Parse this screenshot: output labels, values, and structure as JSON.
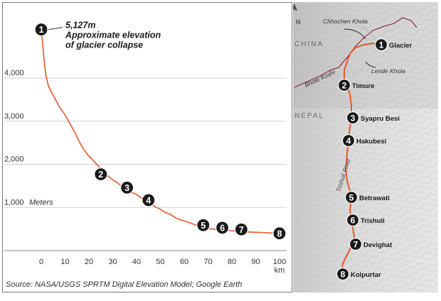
{
  "chart_data": {
    "type": "line",
    "title": "",
    "xlabel": "km",
    "ylabel": "Meters",
    "xlim": [
      -3,
      103
    ],
    "ylim": [
      0,
      5400
    ],
    "x_ticks": [
      0,
      10,
      20,
      30,
      40,
      50,
      60,
      70,
      80,
      90,
      100
    ],
    "y_ticks": [
      {
        "value": 1000,
        "label": "1,000"
      },
      {
        "value": 2000,
        "label": "2,000"
      },
      {
        "value": 3000,
        "label": "3,000"
      },
      {
        "value": 4000,
        "label": "4,000"
      }
    ],
    "y_unit_label": "Meters",
    "grid": "horizontal",
    "line_color": "#e8582a",
    "series": [
      {
        "x": [
          0,
          0.5,
          1,
          1.5,
          2,
          3,
          4,
          5,
          6,
          8,
          10,
          12,
          14,
          16,
          18,
          20,
          22,
          24,
          26,
          28,
          30,
          32,
          34,
          36,
          38,
          40,
          42,
          44,
          46,
          48,
          50,
          52,
          54,
          56,
          58,
          60,
          62,
          64,
          66,
          68,
          70,
          72,
          74,
          76,
          78,
          80,
          82,
          84,
          86,
          88,
          90,
          92,
          94,
          96,
          98,
          100
        ],
        "y": [
          5127,
          4850,
          4520,
          4250,
          4050,
          3820,
          3700,
          3600,
          3500,
          3300,
          3150,
          2950,
          2750,
          2520,
          2330,
          2190,
          2080,
          1960,
          1830,
          1730,
          1640,
          1570,
          1480,
          1420,
          1350,
          1300,
          1220,
          1160,
          1090,
          1010,
          960,
          880,
          850,
          770,
          720,
          690,
          650,
          610,
          570,
          530,
          510,
          500,
          490,
          480,
          475,
          460,
          450,
          440,
          435,
          430,
          425,
          420,
          415,
          410,
          405,
          400
        ]
      }
    ],
    "markers": [
      {
        "num": "1",
        "x": 0,
        "y": 5127
      },
      {
        "num": "2",
        "x": 25,
        "y": 1770
      },
      {
        "num": "3",
        "x": 36,
        "y": 1460
      },
      {
        "num": "4",
        "x": 45,
        "y": 1170
      },
      {
        "num": "5",
        "x": 68,
        "y": 590
      },
      {
        "num": "6",
        "x": 76,
        "y": 530
      },
      {
        "num": "7",
        "x": 84,
        "y": 490
      },
      {
        "num": "8",
        "x": 100,
        "y": 400
      }
    ],
    "annotation": {
      "value": "5,127m",
      "line1": "Approximate elevation",
      "line2": "of glacier collapse"
    }
  },
  "map": {
    "north_label": "N",
    "countries": [
      "CHINA",
      "NEPAL"
    ],
    "rivers": [
      "Chhochen Khola",
      "Bhote Koshi",
      "Lende Khola",
      "Trishuli River"
    ],
    "places": [
      {
        "num": "1",
        "name": "Glacier"
      },
      {
        "num": "2",
        "name": "Timure"
      },
      {
        "num": "3",
        "name": "Syapru Besi"
      },
      {
        "num": "4",
        "name": "Hakubesi"
      },
      {
        "num": "5",
        "name": "Betrawati"
      },
      {
        "num": "6",
        "name": "Trishuli"
      },
      {
        "num": "7",
        "name": "Devighat"
      },
      {
        "num": "8",
        "name": "Kolpurtar"
      }
    ]
  },
  "source": "Source: NASA/USGS SPRTM Digital Elevation Model; Google Earth"
}
